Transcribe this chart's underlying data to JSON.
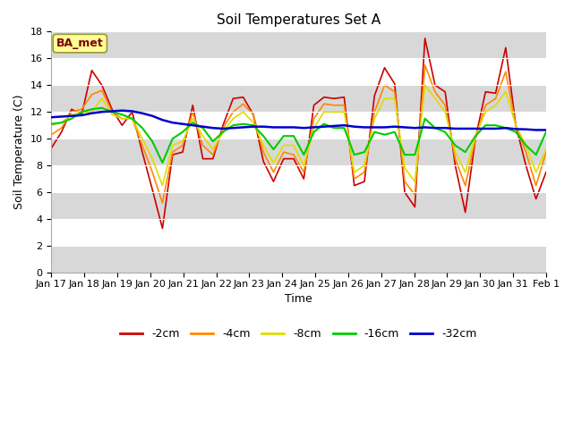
{
  "title": "Soil Temperatures Set A",
  "xlabel": "Time",
  "ylabel": "Soil Temperature (C)",
  "ylim": [
    0,
    18
  ],
  "yticks": [
    0,
    2,
    4,
    6,
    8,
    10,
    12,
    14,
    16,
    18
  ],
  "annotation": "BA_met",
  "fig_bg": "#ffffff",
  "plot_bg": "#ffffff",
  "series_colors": {
    "-2cm": "#cc0000",
    "-4cm": "#ff8800",
    "-8cm": "#dddd00",
    "-16cm": "#00cc00",
    "-32cm": "#0000cc"
  },
  "xtick_labels": [
    "Jan 17",
    "Jan 18",
    "Jan 19",
    "Jan 20",
    "Jan 21",
    "Jan 22",
    "Jan 23",
    "Jan 24",
    "Jan 25",
    "Jan 26",
    "Jan 27",
    "Jan 28",
    "Jan 29",
    "Jan 30",
    "Jan 31",
    "Feb 1"
  ],
  "depth_2cm": [
    9.3,
    10.5,
    12.2,
    11.8,
    15.1,
    14.0,
    12.2,
    11.0,
    12.0,
    9.0,
    6.2,
    3.3,
    8.8,
    9.0,
    12.5,
    8.5,
    8.5,
    11.0,
    13.0,
    13.1,
    11.8,
    8.3,
    6.8,
    8.5,
    8.5,
    7.0,
    12.5,
    13.1,
    13.0,
    13.1,
    6.5,
    6.8,
    13.2,
    15.3,
    14.1,
    6.0,
    4.9,
    17.5,
    14.0,
    13.5,
    8.0,
    4.5,
    10.0,
    13.5,
    13.4,
    16.8,
    11.0,
    8.0,
    5.5,
    7.5
  ],
  "depth_4cm": [
    10.3,
    10.8,
    12.0,
    12.2,
    13.3,
    13.6,
    12.0,
    11.5,
    11.5,
    9.5,
    7.5,
    5.2,
    9.0,
    9.5,
    12.0,
    9.5,
    8.8,
    10.8,
    12.0,
    12.6,
    11.8,
    9.0,
    7.5,
    9.0,
    8.8,
    7.5,
    11.5,
    12.6,
    12.5,
    12.5,
    7.0,
    7.5,
    12.0,
    14.0,
    13.5,
    6.8,
    5.8,
    15.5,
    13.5,
    12.5,
    8.5,
    6.5,
    10.0,
    12.5,
    13.0,
    15.0,
    11.0,
    9.0,
    6.5,
    9.0
  ],
  "depth_8cm": [
    11.0,
    11.2,
    11.8,
    12.0,
    12.0,
    13.0,
    11.8,
    11.5,
    11.5,
    10.0,
    8.5,
    6.5,
    9.5,
    9.8,
    11.5,
    10.2,
    9.2,
    10.5,
    11.5,
    12.0,
    11.2,
    9.5,
    8.2,
    9.5,
    9.5,
    8.0,
    10.8,
    12.0,
    12.0,
    12.0,
    7.5,
    8.0,
    11.5,
    13.0,
    13.0,
    7.8,
    6.8,
    14.0,
    13.0,
    12.0,
    9.0,
    7.5,
    10.2,
    12.0,
    12.5,
    13.5,
    11.0,
    9.5,
    7.5,
    9.2
  ],
  "depth_16cm": [
    11.1,
    11.2,
    11.5,
    12.0,
    12.2,
    12.3,
    12.0,
    11.8,
    11.5,
    10.8,
    9.8,
    8.2,
    10.0,
    10.5,
    11.2,
    10.8,
    9.8,
    10.5,
    11.0,
    11.1,
    11.0,
    10.2,
    9.2,
    10.2,
    10.2,
    8.8,
    10.5,
    11.1,
    10.8,
    10.8,
    8.8,
    9.0,
    10.5,
    10.3,
    10.5,
    8.8,
    8.8,
    11.5,
    10.8,
    10.5,
    9.5,
    9.0,
    10.2,
    11.0,
    11.0,
    10.8,
    10.5,
    9.5,
    8.8,
    10.5
  ],
  "depth_32cm": [
    11.6,
    11.65,
    11.7,
    11.75,
    11.9,
    12.0,
    12.05,
    12.1,
    12.05,
    11.9,
    11.7,
    11.4,
    11.2,
    11.1,
    11.0,
    10.9,
    10.8,
    10.75,
    10.8,
    10.85,
    10.9,
    10.9,
    10.85,
    10.85,
    10.85,
    10.8,
    10.85,
    10.9,
    10.95,
    11.0,
    10.9,
    10.85,
    10.85,
    10.85,
    10.9,
    10.85,
    10.8,
    10.85,
    10.8,
    10.8,
    10.75,
    10.75,
    10.75,
    10.75,
    10.75,
    10.8,
    10.72,
    10.7,
    10.65,
    10.65
  ]
}
